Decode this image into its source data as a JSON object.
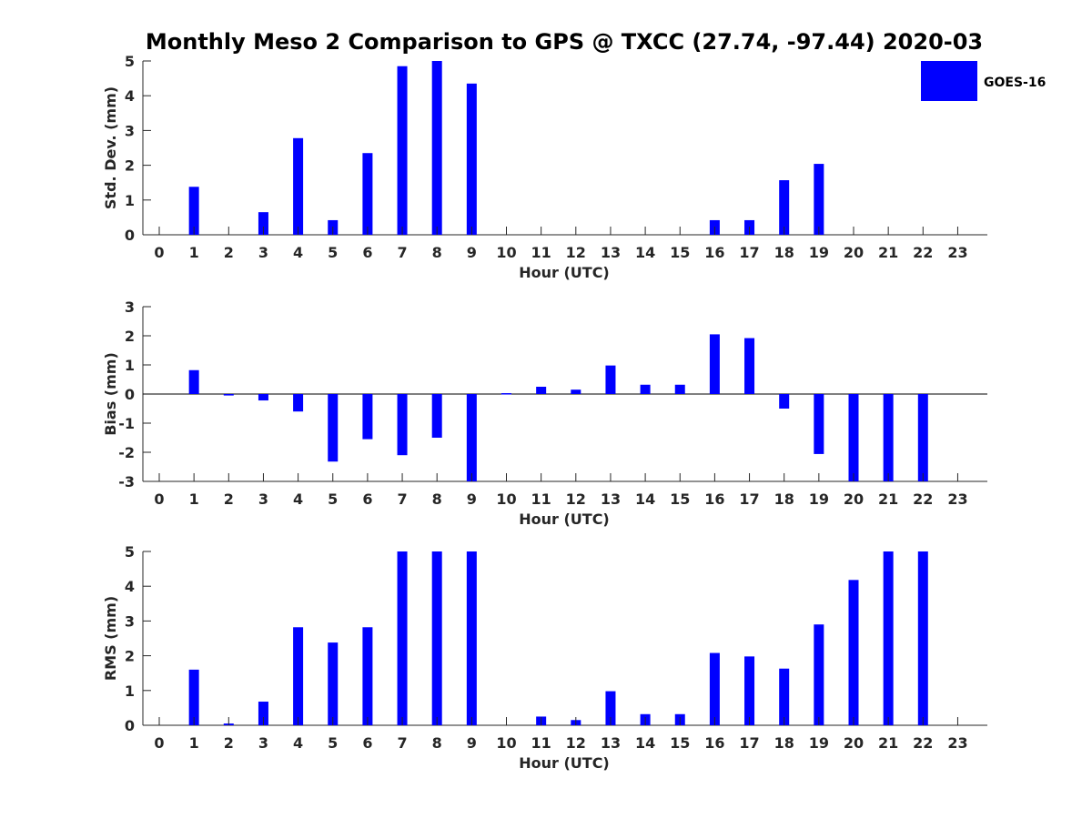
{
  "chart_data": {
    "title": "Monthly Meso 2 Comparison to GPS @ TXCC (27.74, -97.44) 2020-03",
    "legend": {
      "label": "GOES-16",
      "color": "#0000ff",
      "position": "top-right"
    },
    "bar_color": "#0000ff",
    "panels": [
      {
        "type": "bar",
        "ylabel": "Std. Dev. (mm)",
        "xlabel": "Hour (UTC)",
        "ylim": [
          0,
          5
        ],
        "yticks": [
          0,
          1,
          2,
          3,
          4,
          5
        ],
        "categories": [
          "0",
          "1",
          "2",
          "3",
          "4",
          "5",
          "6",
          "7",
          "8",
          "9",
          "10",
          "11",
          "12",
          "13",
          "14",
          "15",
          "16",
          "17",
          "18",
          "19",
          "20",
          "21",
          "22",
          "23"
        ],
        "values": [
          null,
          1.38,
          null,
          0.65,
          2.78,
          0.42,
          2.35,
          4.85,
          5.0,
          4.35,
          null,
          null,
          null,
          null,
          null,
          null,
          0.42,
          0.42,
          1.57,
          2.04,
          null,
          null,
          null,
          null
        ]
      },
      {
        "type": "bar",
        "ylabel": "Bias (mm)",
        "xlabel": "Hour (UTC)",
        "ylim": [
          -3,
          3
        ],
        "yticks": [
          -3,
          -2,
          -1,
          0,
          1,
          2,
          3
        ],
        "zero_line": true,
        "categories": [
          "0",
          "1",
          "2",
          "3",
          "4",
          "5",
          "6",
          "7",
          "8",
          "9",
          "10",
          "11",
          "12",
          "13",
          "14",
          "15",
          "16",
          "17",
          "18",
          "19",
          "20",
          "21",
          "22",
          "23"
        ],
        "values": [
          null,
          0.82,
          -0.05,
          -0.22,
          -0.6,
          -2.32,
          -1.55,
          -2.1,
          -1.5,
          -3.0,
          0.03,
          0.25,
          0.15,
          0.98,
          0.32,
          0.32,
          2.05,
          1.92,
          -0.5,
          -2.06,
          -3.0,
          -3.0,
          -3.0,
          null
        ]
      },
      {
        "type": "bar",
        "ylabel": "RMS (mm)",
        "xlabel": "Hour (UTC)",
        "ylim": [
          0,
          5
        ],
        "yticks": [
          0,
          1,
          2,
          3,
          4,
          5
        ],
        "categories": [
          "0",
          "1",
          "2",
          "3",
          "4",
          "5",
          "6",
          "7",
          "8",
          "9",
          "10",
          "11",
          "12",
          "13",
          "14",
          "15",
          "16",
          "17",
          "18",
          "19",
          "20",
          "21",
          "22",
          "23"
        ],
        "values": [
          null,
          1.6,
          0.05,
          0.68,
          2.82,
          2.38,
          2.82,
          5.0,
          5.0,
          5.0,
          null,
          0.25,
          0.15,
          0.98,
          0.32,
          0.32,
          2.08,
          1.98,
          1.63,
          2.9,
          4.18,
          5.0,
          5.0,
          null
        ]
      }
    ]
  }
}
